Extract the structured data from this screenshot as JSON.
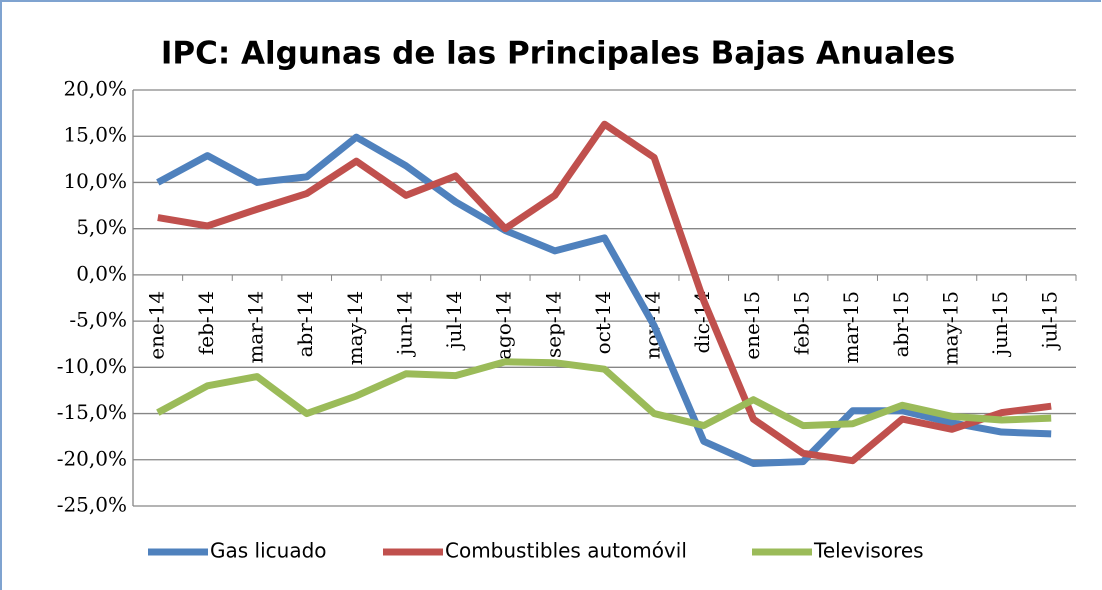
{
  "chart_data": {
    "type": "line",
    "title": "IPC: Algunas de las Principales Bajas Anuales",
    "categories": [
      "ene-14",
      "feb-14",
      "mar-14",
      "abr-14",
      "may-14",
      "jun-14",
      "jul-14",
      "ago-14",
      "sep-14",
      "oct-14",
      "nov-14",
      "dic-14",
      "ene-15",
      "feb-15",
      "mar-15",
      "abr-15",
      "may-15",
      "jun-15",
      "jul-15"
    ],
    "series": [
      {
        "name": "Gas licuado",
        "color": "#4f81bd",
        "values": [
          10.0,
          12.9,
          10.0,
          10.6,
          14.9,
          11.8,
          7.9,
          4.8,
          2.6,
          4.0,
          -5.5,
          -18.0,
          -20.4,
          -20.2,
          -14.7,
          -14.7,
          -16.0,
          -17.0,
          -17.2
        ]
      },
      {
        "name": "Combustibles automóvil",
        "color": "#c0504d",
        "values": [
          6.2,
          5.3,
          7.1,
          8.8,
          12.3,
          8.6,
          10.7,
          5.0,
          8.6,
          16.3,
          12.7,
          -2.8,
          -15.6,
          -19.3,
          -20.1,
          -15.6,
          -16.7,
          -14.9,
          -14.2
        ]
      },
      {
        "name": "Televisores",
        "color": "#9bbb59",
        "values": [
          -14.9,
          -12.0,
          -11.0,
          -15.0,
          -13.1,
          -10.7,
          -10.9,
          -9.4,
          -9.5,
          -10.2,
          -15.0,
          -16.3,
          -13.5,
          -16.3,
          -16.1,
          -14.1,
          -15.3,
          -15.7,
          -15.5
        ]
      }
    ],
    "ylim": [
      -25,
      20
    ],
    "yticks": [
      {
        "value": -25,
        "label": "-25,0%"
      },
      {
        "value": -20,
        "label": "-20,0%"
      },
      {
        "value": -15,
        "label": "-15,0%"
      },
      {
        "value": -10,
        "label": "-10,0%"
      },
      {
        "value": -5,
        "label": "-5,0%"
      },
      {
        "value": 0,
        "label": "0,0%"
      },
      {
        "value": 5,
        "label": "5,0%"
      },
      {
        "value": 10,
        "label": "10,0%"
      },
      {
        "value": 15,
        "label": "15,0%"
      },
      {
        "value": 20,
        "label": "20,0%"
      }
    ],
    "grid": true
  }
}
